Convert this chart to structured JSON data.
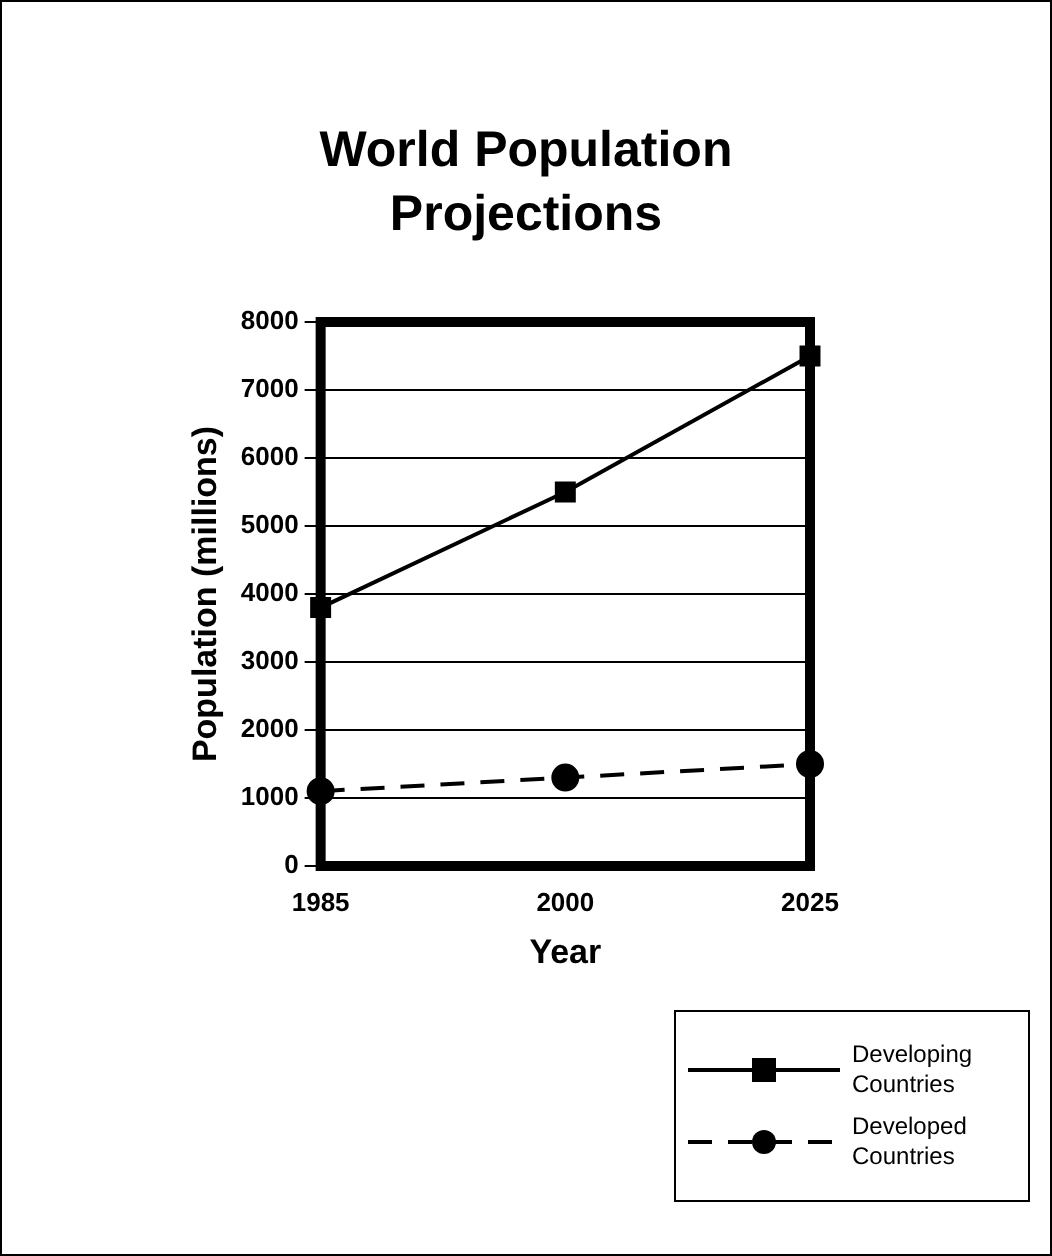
{
  "chart_data": {
    "type": "line",
    "title": "World Population Projections",
    "xlabel": "Year",
    "ylabel": "Population (millions)",
    "categories": [
      "1985",
      "2000",
      "2025"
    ],
    "series": [
      {
        "name": "Developing Countries",
        "color": "#000000",
        "values": [
          3800,
          5500,
          7500
        ],
        "marker": "square",
        "line_style": "solid"
      },
      {
        "name": "Developed Countries",
        "color": "#000000",
        "values": [
          1100,
          1300,
          1500
        ],
        "marker": "circle",
        "line_style": "dashed"
      }
    ],
    "ylim": [
      0,
      8000
    ],
    "yticks": [
      0,
      1000,
      2000,
      3000,
      4000,
      5000,
      6000,
      7000,
      8000
    ],
    "grid": "y",
    "legend": "bottom right"
  }
}
